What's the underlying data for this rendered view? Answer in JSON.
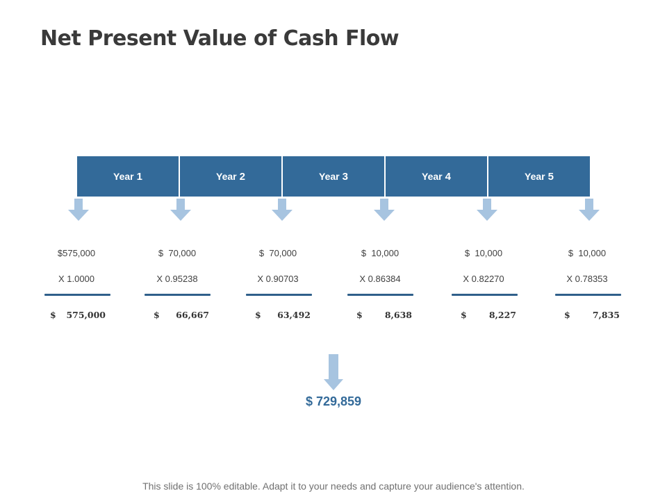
{
  "title": "Net Present Value of Cash Flow",
  "years": [
    {
      "prefix": "Year",
      "num": "1"
    },
    {
      "prefix": "Year",
      "num": "2"
    },
    {
      "prefix": "Year",
      "num": "3"
    },
    {
      "prefix": "Year",
      "num": "4"
    },
    {
      "prefix": "Year",
      "num": "5"
    }
  ],
  "columns": [
    {
      "amount": "$575,000",
      "factor": "X 1.0000",
      "currency": "$",
      "result": "575,000"
    },
    {
      "amount": "$  70,000",
      "factor": "X 0.95238",
      "currency": "$",
      "result": "66,667"
    },
    {
      "amount": "$  70,000",
      "factor": "X 0.90703",
      "currency": "$",
      "result": "63,492"
    },
    {
      "amount": "$  10,000",
      "factor": "X 0.86384",
      "currency": "$",
      "result": "8,638"
    },
    {
      "amount": "$  10,000",
      "factor": "X 0.82270",
      "currency": "$",
      "result": "8,227"
    },
    {
      "amount": "$  10,000",
      "factor": "X 0.78353",
      "currency": "$",
      "result": "7,835"
    }
  ],
  "total": "$ 729,859",
  "footer": "This slide is 100% editable. Adapt it to your needs and capture your audience's attention.",
  "colors": {
    "bar": "#336a99",
    "arrow": "#a7c4e0",
    "total": "#336a99",
    "rule": "#2f5f8a"
  }
}
